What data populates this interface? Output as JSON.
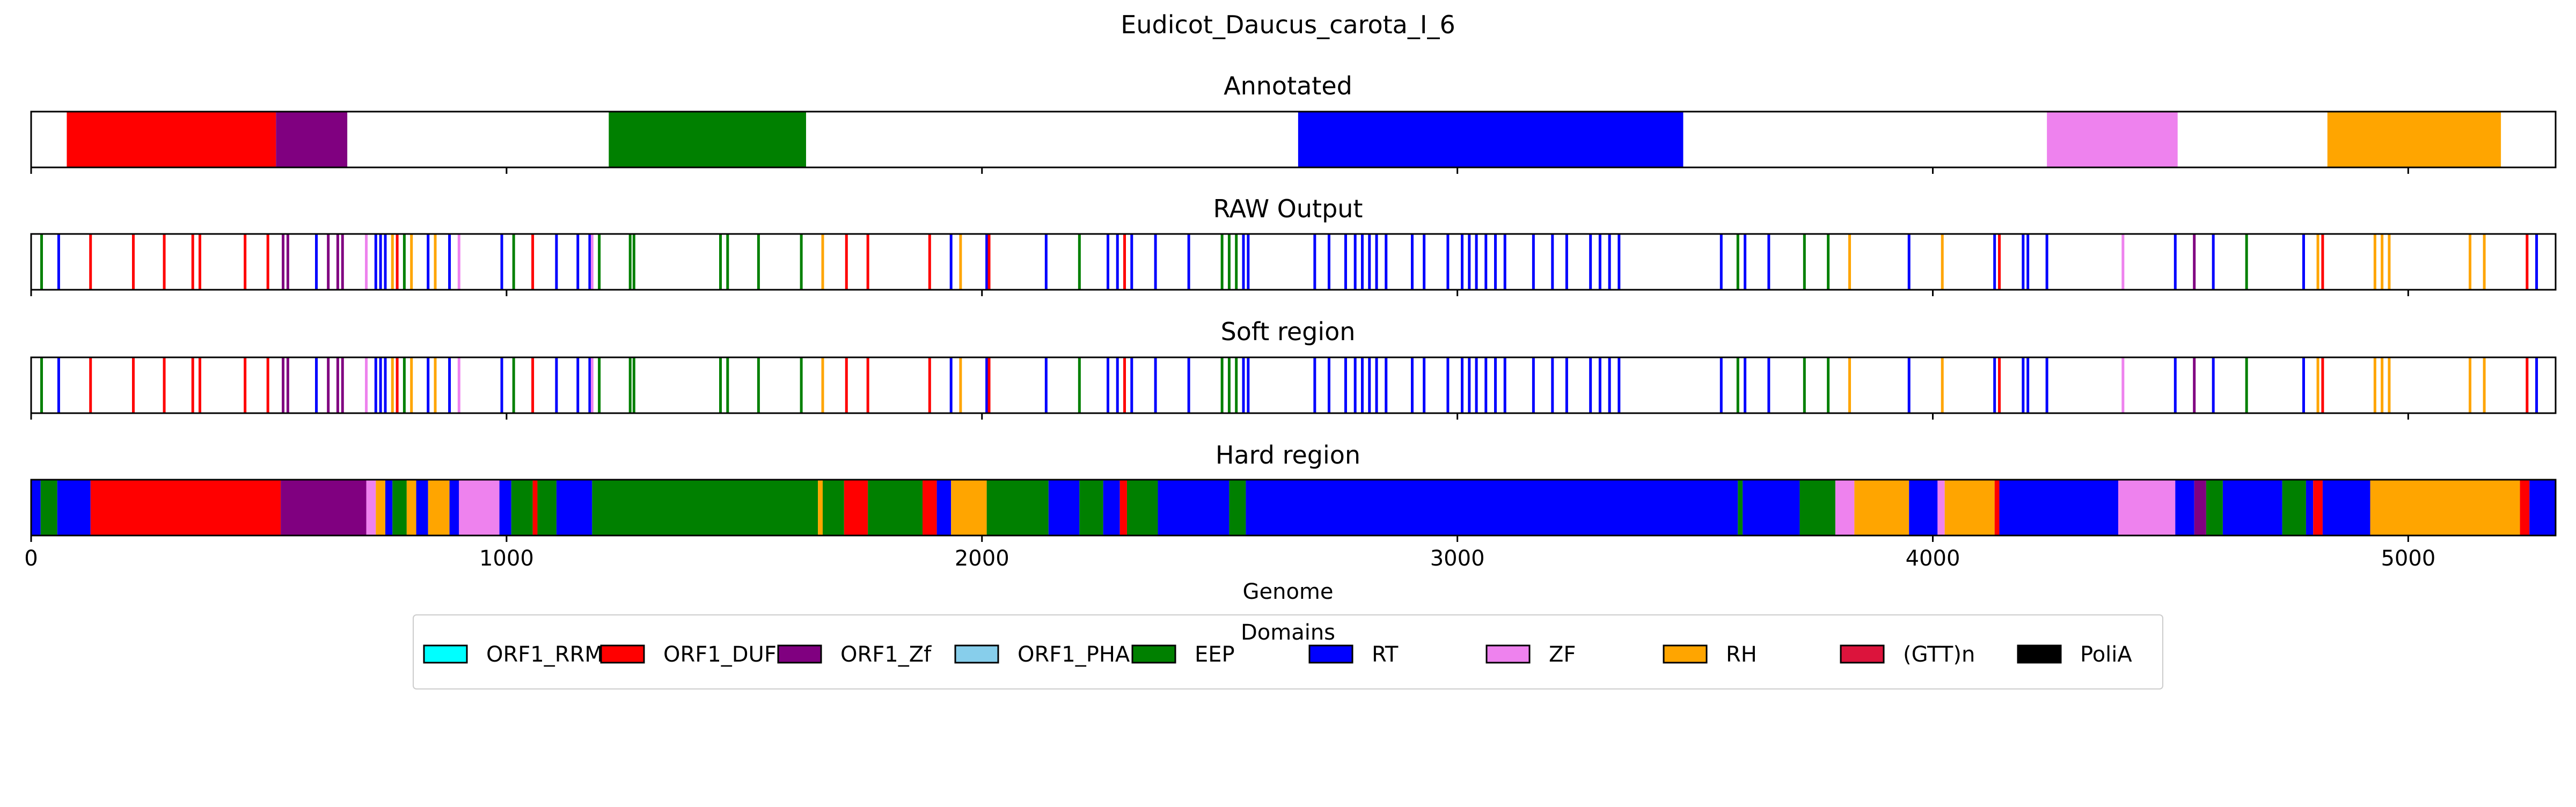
{
  "chart_data": {
    "type": "genome-track",
    "title": "Eudicot_Daucus_carota_I_6",
    "xlabel": "Genome",
    "xlim": [
      0,
      5310
    ],
    "xticks": [
      0,
      1000,
      2000,
      3000,
      4000,
      5000
    ],
    "domain_colors": {
      "ORF1_RRM": "#00ffff",
      "ORF1_DUF": "#ff0000",
      "ORF1_Zf": "#800080",
      "ORF1_PHA": "#87ceeb",
      "EEP": "#008000",
      "RT": "#0000ff",
      "ZF": "#ee82ee",
      "RH": "#ffa500",
      "(GTT)n": "#dc143c",
      "PoliA": "#000000"
    },
    "legend": {
      "title": "Domains",
      "position": "bottom-center",
      "entries": [
        "ORF1_RRM",
        "ORF1_DUF",
        "ORF1_Zf",
        "ORF1_PHA",
        "EEP",
        "RT",
        "ZF",
        "RH",
        "(GTT)n",
        "PoliA"
      ]
    },
    "tracks": [
      {
        "title": "Annotated",
        "mode": "segments",
        "segments": [
          {
            "start": 75,
            "end": 515,
            "domain": "ORF1_DUF"
          },
          {
            "start": 515,
            "end": 665,
            "domain": "ORF1_Zf"
          },
          {
            "start": 1215,
            "end": 1630,
            "domain": "EEP"
          },
          {
            "start": 2665,
            "end": 3475,
            "domain": "RT"
          },
          {
            "start": 4240,
            "end": 4515,
            "domain": "ZF"
          },
          {
            "start": 4830,
            "end": 5195,
            "domain": "RH"
          }
        ]
      },
      {
        "title": "RAW Output",
        "mode": "lines",
        "lines": [
          {
            "pos": 22,
            "domain": "EEP"
          },
          {
            "pos": 58,
            "domain": "RT"
          },
          {
            "pos": 125,
            "domain": "ORF1_DUF"
          },
          {
            "pos": 215,
            "domain": "ORF1_DUF"
          },
          {
            "pos": 280,
            "domain": "ORF1_DUF"
          },
          {
            "pos": 340,
            "domain": "ORF1_DUF"
          },
          {
            "pos": 355,
            "domain": "ORF1_DUF"
          },
          {
            "pos": 450,
            "domain": "ORF1_DUF"
          },
          {
            "pos": 498,
            "domain": "ORF1_DUF"
          },
          {
            "pos": 530,
            "domain": "ORF1_Zf"
          },
          {
            "pos": 540,
            "domain": "ORF1_Zf"
          },
          {
            "pos": 600,
            "domain": "RT"
          },
          {
            "pos": 625,
            "domain": "ORF1_Zf"
          },
          {
            "pos": 645,
            "domain": "ORF1_Zf"
          },
          {
            "pos": 655,
            "domain": "ORF1_Zf"
          },
          {
            "pos": 705,
            "domain": "ZF"
          },
          {
            "pos": 725,
            "domain": "RT"
          },
          {
            "pos": 735,
            "domain": "RT"
          },
          {
            "pos": 745,
            "domain": "RT"
          },
          {
            "pos": 760,
            "domain": "RH"
          },
          {
            "pos": 770,
            "domain": "ORF1_DUF"
          },
          {
            "pos": 785,
            "domain": "EEP"
          },
          {
            "pos": 800,
            "domain": "RH"
          },
          {
            "pos": 835,
            "domain": "RT"
          },
          {
            "pos": 850,
            "domain": "RH"
          },
          {
            "pos": 880,
            "domain": "RT"
          },
          {
            "pos": 900,
            "domain": "ZF"
          },
          {
            "pos": 990,
            "domain": "RT"
          },
          {
            "pos": 1015,
            "domain": "EEP"
          },
          {
            "pos": 1055,
            "domain": "ORF1_DUF"
          },
          {
            "pos": 1105,
            "domain": "RT"
          },
          {
            "pos": 1150,
            "domain": "RT"
          },
          {
            "pos": 1175,
            "domain": "RT"
          },
          {
            "pos": 1180,
            "domain": "ZF"
          },
          {
            "pos": 1195,
            "domain": "EEP"
          },
          {
            "pos": 1260,
            "domain": "EEP"
          },
          {
            "pos": 1268,
            "domain": "EEP"
          },
          {
            "pos": 1450,
            "domain": "EEP"
          },
          {
            "pos": 1465,
            "domain": "EEP"
          },
          {
            "pos": 1530,
            "domain": "EEP"
          },
          {
            "pos": 1620,
            "domain": "EEP"
          },
          {
            "pos": 1665,
            "domain": "RH"
          },
          {
            "pos": 1715,
            "domain": "ORF1_DUF"
          },
          {
            "pos": 1760,
            "domain": "ORF1_DUF"
          },
          {
            "pos": 1890,
            "domain": "ORF1_DUF"
          },
          {
            "pos": 1935,
            "domain": "RT"
          },
          {
            "pos": 1955,
            "domain": "RH"
          },
          {
            "pos": 2010,
            "domain": "RT"
          },
          {
            "pos": 2015,
            "domain": "ORF1_DUF"
          },
          {
            "pos": 2135,
            "domain": "RT"
          },
          {
            "pos": 2205,
            "domain": "EEP"
          },
          {
            "pos": 2265,
            "domain": "RT"
          },
          {
            "pos": 2285,
            "domain": "RT"
          },
          {
            "pos": 2300,
            "domain": "ORF1_DUF"
          },
          {
            "pos": 2315,
            "domain": "RT"
          },
          {
            "pos": 2365,
            "domain": "RT"
          },
          {
            "pos": 2435,
            "domain": "RT"
          },
          {
            "pos": 2505,
            "domain": "EEP"
          },
          {
            "pos": 2520,
            "domain": "EEP"
          },
          {
            "pos": 2535,
            "domain": "EEP"
          },
          {
            "pos": 2550,
            "domain": "RT"
          },
          {
            "pos": 2560,
            "domain": "RT"
          },
          {
            "pos": 2700,
            "domain": "RT"
          },
          {
            "pos": 2730,
            "domain": "RT"
          },
          {
            "pos": 2765,
            "domain": "RT"
          },
          {
            "pos": 2785,
            "domain": "RT"
          },
          {
            "pos": 2800,
            "domain": "RT"
          },
          {
            "pos": 2815,
            "domain": "RT"
          },
          {
            "pos": 2830,
            "domain": "RT"
          },
          {
            "pos": 2850,
            "domain": "RT"
          },
          {
            "pos": 2905,
            "domain": "RT"
          },
          {
            "pos": 2930,
            "domain": "RT"
          },
          {
            "pos": 2980,
            "domain": "RT"
          },
          {
            "pos": 3010,
            "domain": "RT"
          },
          {
            "pos": 3025,
            "domain": "RT"
          },
          {
            "pos": 3040,
            "domain": "RT"
          },
          {
            "pos": 3060,
            "domain": "RT"
          },
          {
            "pos": 3080,
            "domain": "RT"
          },
          {
            "pos": 3100,
            "domain": "RT"
          },
          {
            "pos": 3160,
            "domain": "RT"
          },
          {
            "pos": 3200,
            "domain": "RT"
          },
          {
            "pos": 3230,
            "domain": "RT"
          },
          {
            "pos": 3280,
            "domain": "RT"
          },
          {
            "pos": 3300,
            "domain": "RT"
          },
          {
            "pos": 3320,
            "domain": "RT"
          },
          {
            "pos": 3340,
            "domain": "RT"
          },
          {
            "pos": 3555,
            "domain": "RT"
          },
          {
            "pos": 3590,
            "domain": "EEP"
          },
          {
            "pos": 3605,
            "domain": "RT"
          },
          {
            "pos": 3655,
            "domain": "RT"
          },
          {
            "pos": 3730,
            "domain": "EEP"
          },
          {
            "pos": 3780,
            "domain": "EEP"
          },
          {
            "pos": 3825,
            "domain": "RH"
          },
          {
            "pos": 3950,
            "domain": "RT"
          },
          {
            "pos": 4020,
            "domain": "RH"
          },
          {
            "pos": 4130,
            "domain": "RT"
          },
          {
            "pos": 4140,
            "domain": "ORF1_DUF"
          },
          {
            "pos": 4190,
            "domain": "RT"
          },
          {
            "pos": 4200,
            "domain": "RT"
          },
          {
            "pos": 4240,
            "domain": "RT"
          },
          {
            "pos": 4400,
            "domain": "ZF"
          },
          {
            "pos": 4510,
            "domain": "RT"
          },
          {
            "pos": 4550,
            "domain": "ORF1_Zf"
          },
          {
            "pos": 4590,
            "domain": "RT"
          },
          {
            "pos": 4660,
            "domain": "EEP"
          },
          {
            "pos": 4780,
            "domain": "RT"
          },
          {
            "pos": 4810,
            "domain": "RH"
          },
          {
            "pos": 4820,
            "domain": "ORF1_DUF"
          },
          {
            "pos": 4930,
            "domain": "RH"
          },
          {
            "pos": 4945,
            "domain": "RH"
          },
          {
            "pos": 4960,
            "domain": "RH"
          },
          {
            "pos": 5130,
            "domain": "RH"
          },
          {
            "pos": 5160,
            "domain": "RH"
          },
          {
            "pos": 5250,
            "domain": "ORF1_DUF"
          },
          {
            "pos": 5270,
            "domain": "RT"
          }
        ]
      },
      {
        "title": "Soft region",
        "mode": "lines",
        "same_as": "RAW Output"
      },
      {
        "title": "Hard region",
        "mode": "segments",
        "segments": [
          {
            "start": 0,
            "end": 20,
            "domain": "RT"
          },
          {
            "start": 20,
            "end": 55,
            "domain": "EEP"
          },
          {
            "start": 55,
            "end": 125,
            "domain": "RT"
          },
          {
            "start": 125,
            "end": 525,
            "domain": "ORF1_DUF"
          },
          {
            "start": 525,
            "end": 705,
            "domain": "ORF1_Zf"
          },
          {
            "start": 705,
            "end": 725,
            "domain": "ZF"
          },
          {
            "start": 725,
            "end": 745,
            "domain": "RH"
          },
          {
            "start": 745,
            "end": 760,
            "domain": "RT"
          },
          {
            "start": 760,
            "end": 790,
            "domain": "EEP"
          },
          {
            "start": 790,
            "end": 810,
            "domain": "RH"
          },
          {
            "start": 810,
            "end": 835,
            "domain": "RT"
          },
          {
            "start": 835,
            "end": 880,
            "domain": "RH"
          },
          {
            "start": 880,
            "end": 900,
            "domain": "RT"
          },
          {
            "start": 900,
            "end": 985,
            "domain": "ZF"
          },
          {
            "start": 985,
            "end": 1010,
            "domain": "RT"
          },
          {
            "start": 1010,
            "end": 1055,
            "domain": "EEP"
          },
          {
            "start": 1055,
            "end": 1065,
            "domain": "ORF1_DUF"
          },
          {
            "start": 1065,
            "end": 1105,
            "domain": "EEP"
          },
          {
            "start": 1105,
            "end": 1180,
            "domain": "RT"
          },
          {
            "start": 1180,
            "end": 1655,
            "domain": "EEP"
          },
          {
            "start": 1655,
            "end": 1665,
            "domain": "RH"
          },
          {
            "start": 1665,
            "end": 1710,
            "domain": "EEP"
          },
          {
            "start": 1710,
            "end": 1760,
            "domain": "ORF1_DUF"
          },
          {
            "start": 1760,
            "end": 1875,
            "domain": "EEP"
          },
          {
            "start": 1875,
            "end": 1905,
            "domain": "ORF1_DUF"
          },
          {
            "start": 1905,
            "end": 1935,
            "domain": "RT"
          },
          {
            "start": 1935,
            "end": 2010,
            "domain": "RH"
          },
          {
            "start": 2010,
            "end": 2140,
            "domain": "EEP"
          },
          {
            "start": 2140,
            "end": 2205,
            "domain": "RT"
          },
          {
            "start": 2205,
            "end": 2255,
            "domain": "EEP"
          },
          {
            "start": 2255,
            "end": 2290,
            "domain": "RT"
          },
          {
            "start": 2290,
            "end": 2305,
            "domain": "ORF1_DUF"
          },
          {
            "start": 2305,
            "end": 2370,
            "domain": "EEP"
          },
          {
            "start": 2370,
            "end": 2520,
            "domain": "RT"
          },
          {
            "start": 2520,
            "end": 2555,
            "domain": "EEP"
          },
          {
            "start": 2555,
            "end": 3590,
            "domain": "RT"
          },
          {
            "start": 3590,
            "end": 3600,
            "domain": "EEP"
          },
          {
            "start": 3600,
            "end": 3720,
            "domain": "RT"
          },
          {
            "start": 3720,
            "end": 3795,
            "domain": "EEP"
          },
          {
            "start": 3795,
            "end": 3835,
            "domain": "ZF"
          },
          {
            "start": 3835,
            "end": 3950,
            "domain": "RH"
          },
          {
            "start": 3950,
            "end": 4010,
            "domain": "RT"
          },
          {
            "start": 4010,
            "end": 4025,
            "domain": "ZF"
          },
          {
            "start": 4025,
            "end": 4130,
            "domain": "RH"
          },
          {
            "start": 4130,
            "end": 4140,
            "domain": "ORF1_DUF"
          },
          {
            "start": 4140,
            "end": 4390,
            "domain": "RT"
          },
          {
            "start": 4390,
            "end": 4510,
            "domain": "ZF"
          },
          {
            "start": 4510,
            "end": 4550,
            "domain": "RT"
          },
          {
            "start": 4550,
            "end": 4575,
            "domain": "ORF1_Zf"
          },
          {
            "start": 4575,
            "end": 4610,
            "domain": "EEP"
          },
          {
            "start": 4610,
            "end": 4735,
            "domain": "RT"
          },
          {
            "start": 4735,
            "end": 4785,
            "domain": "EEP"
          },
          {
            "start": 4785,
            "end": 4800,
            "domain": "RT"
          },
          {
            "start": 4800,
            "end": 4820,
            "domain": "ORF1_DUF"
          },
          {
            "start": 4820,
            "end": 4920,
            "domain": "RT"
          },
          {
            "start": 4920,
            "end": 5235,
            "domain": "RH"
          },
          {
            "start": 5235,
            "end": 5255,
            "domain": "ORF1_DUF"
          },
          {
            "start": 5255,
            "end": 5310,
            "domain": "RT"
          }
        ]
      }
    ]
  }
}
